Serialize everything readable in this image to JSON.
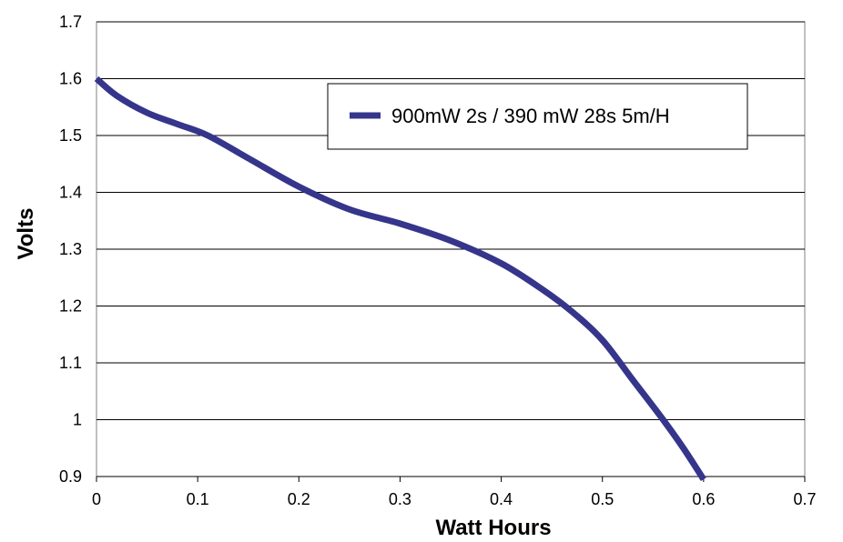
{
  "chart_data": {
    "type": "line",
    "title": "",
    "xlabel": "Watt Hours",
    "ylabel": "Volts",
    "xlim": [
      0,
      0.7
    ],
    "ylim": [
      0.9,
      1.7
    ],
    "x_ticks": [
      0,
      0.1,
      0.2,
      0.3,
      0.4,
      0.5,
      0.6,
      0.7
    ],
    "y_ticks": [
      0.9,
      1,
      1.1,
      1.2,
      1.3,
      1.4,
      1.5,
      1.6,
      1.7
    ],
    "x_tick_labels": [
      "0",
      "0.1",
      "0.2",
      "0.3",
      "0.4",
      "0.5",
      "0.6",
      "0.7"
    ],
    "y_tick_labels": [
      "0.9",
      "1",
      "1.1",
      "1.2",
      "1.3",
      "1.4",
      "1.5",
      "1.6",
      "1.7"
    ],
    "grid": "horizontal",
    "legend_position": "top-right",
    "series": [
      {
        "name": "900mW 2s / 390 mW 28s 5m/H",
        "color": "#35358C",
        "points": [
          [
            0,
            1.6
          ],
          [
            0.02,
            1.57
          ],
          [
            0.05,
            1.54
          ],
          [
            0.08,
            1.52
          ],
          [
            0.11,
            1.5
          ],
          [
            0.15,
            1.46
          ],
          [
            0.2,
            1.41
          ],
          [
            0.25,
            1.37
          ],
          [
            0.3,
            1.345
          ],
          [
            0.35,
            1.315
          ],
          [
            0.4,
            1.275
          ],
          [
            0.44,
            1.23
          ],
          [
            0.47,
            1.19
          ],
          [
            0.5,
            1.14
          ],
          [
            0.53,
            1.07
          ],
          [
            0.56,
            1.0
          ],
          [
            0.58,
            0.95
          ],
          [
            0.6,
            0.895
          ]
        ]
      }
    ]
  }
}
